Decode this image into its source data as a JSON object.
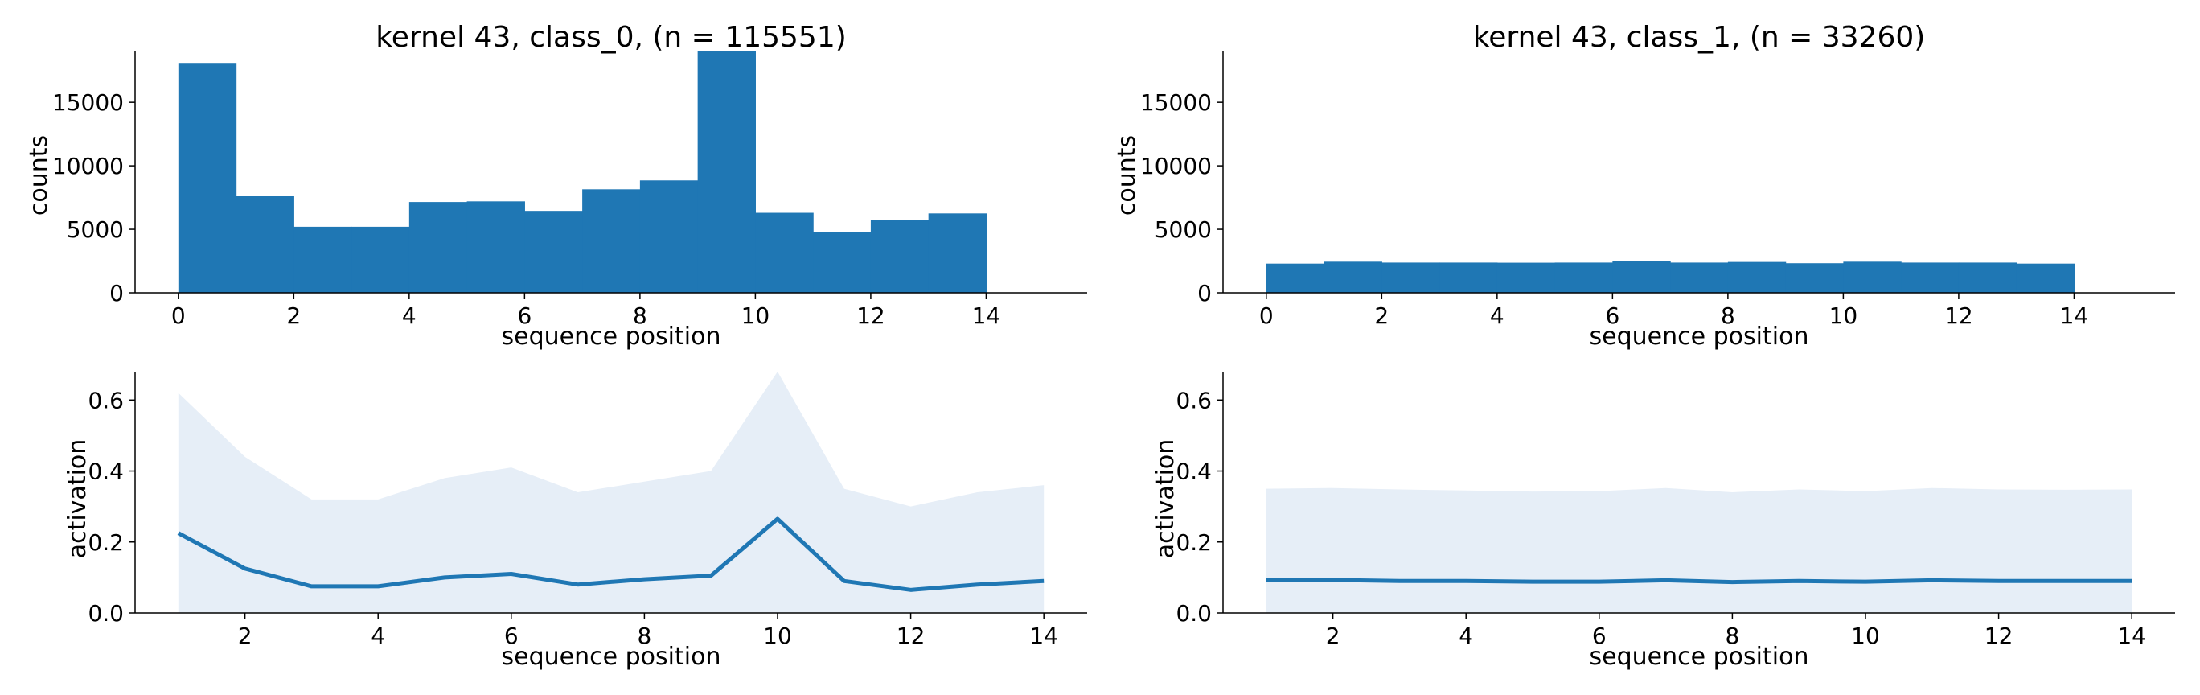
{
  "colors": {
    "bar": "#1f77b4",
    "line": "#1f77b4",
    "band": "#e6eef7",
    "axis": "#000000"
  },
  "chart_data": [
    {
      "type": "bar",
      "title": "kernel 43, class_0, (n = 115551)",
      "xlabel": "sequence position",
      "ylabel": "counts",
      "xlim": [
        -0.75,
        15.75
      ],
      "ylim": [
        0,
        19000
      ],
      "xticks": [
        0,
        2,
        4,
        6,
        8,
        10,
        12,
        14
      ],
      "yticks": [
        0,
        5000,
        10000,
        15000
      ],
      "bin_edges": [
        0,
        1,
        2,
        3,
        4,
        5,
        6,
        7,
        8,
        9,
        10,
        11,
        12,
        13,
        14
      ],
      "values": [
        18100,
        7600,
        5200,
        5200,
        7150,
        7200,
        6450,
        8150,
        8850,
        19000,
        6300,
        4800,
        5750,
        6250
      ]
    },
    {
      "type": "bar",
      "title": "kernel 43, class_1, (n = 33260)",
      "xlabel": "sequence position",
      "ylabel": "counts",
      "xlim": [
        -0.75,
        15.75
      ],
      "ylim": [
        0,
        19000
      ],
      "xticks": [
        0,
        2,
        4,
        6,
        8,
        10,
        12,
        14
      ],
      "yticks": [
        0,
        5000,
        10000,
        15000
      ],
      "bin_edges": [
        0,
        1,
        2,
        3,
        4,
        5,
        6,
        7,
        8,
        9,
        10,
        11,
        12,
        13,
        14
      ],
      "values": [
        2300,
        2450,
        2380,
        2380,
        2370,
        2380,
        2500,
        2380,
        2430,
        2330,
        2450,
        2380,
        2380,
        2300
      ]
    },
    {
      "type": "line",
      "title": "",
      "xlabel": "sequence position",
      "ylabel": "activation",
      "xlim": [
        0.35,
        14.65
      ],
      "ylim": [
        0,
        0.68
      ],
      "xticks": [
        2,
        4,
        6,
        8,
        10,
        12,
        14
      ],
      "yticks": [
        0.0,
        0.2,
        0.4,
        0.6
      ],
      "ytick_labels": [
        "0.0",
        "0.2",
        "0.4",
        "0.6"
      ],
      "x": [
        1,
        2,
        3,
        4,
        5,
        6,
        7,
        8,
        9,
        10,
        11,
        12,
        13,
        14
      ],
      "mean": [
        0.225,
        0.125,
        0.075,
        0.075,
        0.1,
        0.11,
        0.08,
        0.095,
        0.105,
        0.265,
        0.09,
        0.065,
        0.08,
        0.09
      ],
      "upper": [
        0.62,
        0.44,
        0.32,
        0.32,
        0.38,
        0.41,
        0.34,
        0.37,
        0.4,
        0.68,
        0.35,
        0.3,
        0.34,
        0.36
      ],
      "lower": [
        0,
        0,
        0,
        0,
        0,
        0,
        0,
        0,
        0,
        0,
        0,
        0,
        0,
        0
      ]
    },
    {
      "type": "line",
      "title": "",
      "xlabel": "sequence position",
      "ylabel": "activation",
      "xlim": [
        0.35,
        14.65
      ],
      "ylim": [
        0,
        0.68
      ],
      "xticks": [
        2,
        4,
        6,
        8,
        10,
        12,
        14
      ],
      "yticks": [
        0.0,
        0.2,
        0.4,
        0.6
      ],
      "ytick_labels": [
        "0.0",
        "0.2",
        "0.4",
        "0.6"
      ],
      "x": [
        1,
        2,
        3,
        4,
        5,
        6,
        7,
        8,
        9,
        10,
        11,
        12,
        13,
        14
      ],
      "mean": [
        0.093,
        0.093,
        0.09,
        0.09,
        0.088,
        0.088,
        0.092,
        0.087,
        0.09,
        0.088,
        0.092,
        0.09,
        0.09,
        0.09
      ],
      "upper": [
        0.35,
        0.352,
        0.348,
        0.345,
        0.342,
        0.343,
        0.352,
        0.34,
        0.348,
        0.343,
        0.352,
        0.348,
        0.347,
        0.348
      ],
      "lower": [
        0,
        0,
        0,
        0,
        0,
        0,
        0,
        0,
        0,
        0,
        0,
        0,
        0,
        0
      ]
    }
  ]
}
